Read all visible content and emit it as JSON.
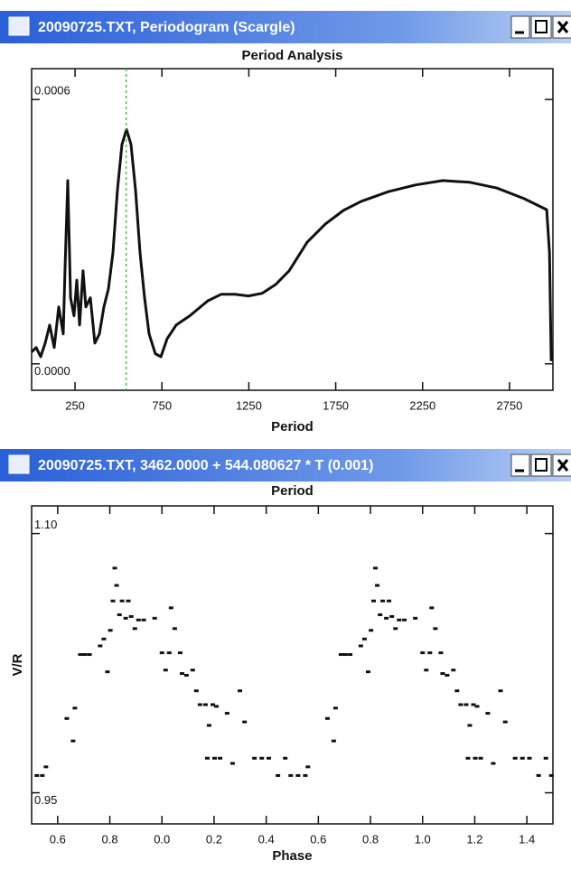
{
  "windows": [
    {
      "title": "20090725.TXT, Periodogram (Scargle)"
    },
    {
      "title": "20090725.TXT, 3462.0000 + 544.080627 * T (0.001)"
    }
  ],
  "chart_data": [
    {
      "type": "line",
      "title": "Period Analysis",
      "x_label": "Period",
      "xlim": [
        0,
        3000
      ],
      "xticks": [
        250,
        750,
        1250,
        1750,
        2250,
        2750
      ],
      "ylim": [
        -6e-05,
        0.00067
      ],
      "yticks": [
        {
          "value": 0,
          "label": "0.0000"
        },
        {
          "value": 0.0006,
          "label": "0.0006"
        }
      ],
      "highlight_x": 544.08,
      "highlight_color": "#33aa33",
      "color": "#111111",
      "x": [
        0,
        26,
        52,
        78,
        104,
        130,
        156,
        182,
        192,
        208,
        224,
        244,
        260,
        276,
        296,
        312,
        338,
        364,
        390,
        416,
        442,
        468,
        494,
        520,
        546,
        572,
        598,
        624,
        650,
        676,
        712,
        744,
        780,
        832,
        910,
        1014,
        1092,
        1170,
        1248,
        1326,
        1404,
        1482,
        1586,
        1690,
        1794,
        1898,
        2054,
        2210,
        2366,
        2522,
        2678,
        2834,
        2964,
        2980,
        2990
      ],
      "values": [
        2.7e-05,
        3.7e-05,
        1.6e-05,
        4.7e-05,
        8.8e-05,
        3.7e-05,
        0.000129,
        6.8e-05,
        0.000211,
        0.000416,
        0.00015,
        0.000109,
        0.00019,
        8.8e-05,
        0.000211,
        0.000129,
        0.00015,
        4.7e-05,
        6.8e-05,
        0.000129,
        0.00017,
        0.000252,
        0.000395,
        0.000498,
        0.000532,
        0.000498,
        0.000395,
        0.000252,
        0.00015,
        6.8e-05,
        2.3e-05,
        1.6e-05,
        5.7e-05,
        8.8e-05,
        0.000109,
        0.000143,
        0.000158,
        0.000158,
        0.000154,
        0.00016,
        0.00018,
        0.000211,
        0.000276,
        0.000317,
        0.000348,
        0.000369,
        0.000391,
        0.000406,
        0.000416,
        0.000412,
        0.000399,
        0.000375,
        0.00035,
        0.000252,
        6e-06
      ]
    },
    {
      "type": "scatter",
      "title": "Period",
      "x_label": "Phase",
      "y_label": "V/R",
      "xlim": [
        -0.5,
        1.5
      ],
      "xticks": [
        {
          "value": -0.4,
          "label": "0.6"
        },
        {
          "value": -0.2,
          "label": "0.8"
        },
        {
          "value": 0,
          "label": "0.0"
        },
        0.2,
        0.4,
        0.6,
        0.8,
        {
          "value": 1,
          "label": "1.0"
        },
        1.2,
        1.4
      ],
      "ylim": [
        0.932,
        1.116
      ],
      "yticks": [
        0.95,
        {
          "value": 1.1,
          "label": "1.10"
        }
      ],
      "color": "#111111",
      "x": [
        -0.48,
        -0.459,
        -0.445,
        -0.365,
        -0.341,
        -0.334,
        -0.313,
        -0.296,
        -0.278,
        -0.237,
        -0.223,
        -0.209,
        -0.198,
        -0.188,
        -0.181,
        -0.174,
        -0.163,
        -0.153,
        -0.139,
        -0.129,
        -0.118,
        -0.104,
        -0.09,
        -0.07,
        -0.028,
        0,
        0.014,
        0.028,
        0.035,
        0.049,
        0.07,
        0.077,
        0.094,
        0.118,
        0.132,
        0.146,
        0.167,
        0.181,
        0.195,
        0.209,
        0.25,
        0.174,
        0.202,
        0.223,
        0.271,
        0.299,
        0.317,
        0.355,
        0.383,
        0.41,
        0.445,
        0.473,
        0.494,
        0.522,
        0.55,
        0.56,
        0.635,
        0.659,
        0.666,
        0.687,
        0.704,
        0.722,
        0.763,
        0.777,
        0.791,
        0.802,
        0.812,
        0.819,
        0.826,
        0.837,
        0.847,
        0.861,
        0.871,
        0.882,
        0.896,
        0.91,
        0.93,
        0.972,
        1.0,
        1.014,
        1.028,
        1.035,
        1.049,
        1.07,
        1.077,
        1.094,
        1.118,
        1.132,
        1.146,
        1.167,
        1.181,
        1.195,
        1.209,
        1.25,
        1.174,
        1.202,
        1.223,
        1.271,
        1.299,
        1.317,
        1.355,
        1.383,
        1.41,
        1.445,
        1.473,
        1.494
      ],
      "values": [
        0.96,
        0.96,
        0.965,
        0.993,
        0.98,
        0.999,
        1.03,
        1.03,
        1.03,
        1.035,
        1.039,
        1.02,
        1.044,
        1.061,
        1.08,
        1.07,
        1.053,
        1.061,
        1.051,
        1.061,
        1.052,
        1.045,
        1.05,
        1.05,
        1.051,
        1.031,
        1.021,
        1.031,
        1.057,
        1.045,
        1.031,
        1.019,
        1.018,
        1.021,
        1.009,
        1.001,
        1.001,
        0.989,
        1.001,
        1.0,
        0.996,
        0.97,
        0.97,
        0.97,
        0.967,
        1.009,
        0.991,
        0.97,
        0.97,
        0.97,
        0.96,
        0.97,
        0.96,
        0.96,
        0.96,
        0.965,
        0.993,
        0.98,
        0.999,
        1.03,
        1.03,
        1.03,
        1.035,
        1.039,
        1.02,
        1.044,
        1.061,
        1.08,
        1.07,
        1.053,
        1.061,
        1.051,
        1.061,
        1.052,
        1.045,
        1.05,
        1.05,
        1.051,
        1.031,
        1.021,
        1.031,
        1.057,
        1.045,
        1.031,
        1.019,
        1.018,
        1.021,
        1.009,
        1.001,
        1.001,
        0.989,
        1.001,
        1.0,
        0.996,
        0.97,
        0.97,
        0.97,
        0.967,
        1.009,
        0.991,
        0.97,
        0.97,
        0.97,
        0.96,
        0.97,
        0.96
      ]
    }
  ]
}
